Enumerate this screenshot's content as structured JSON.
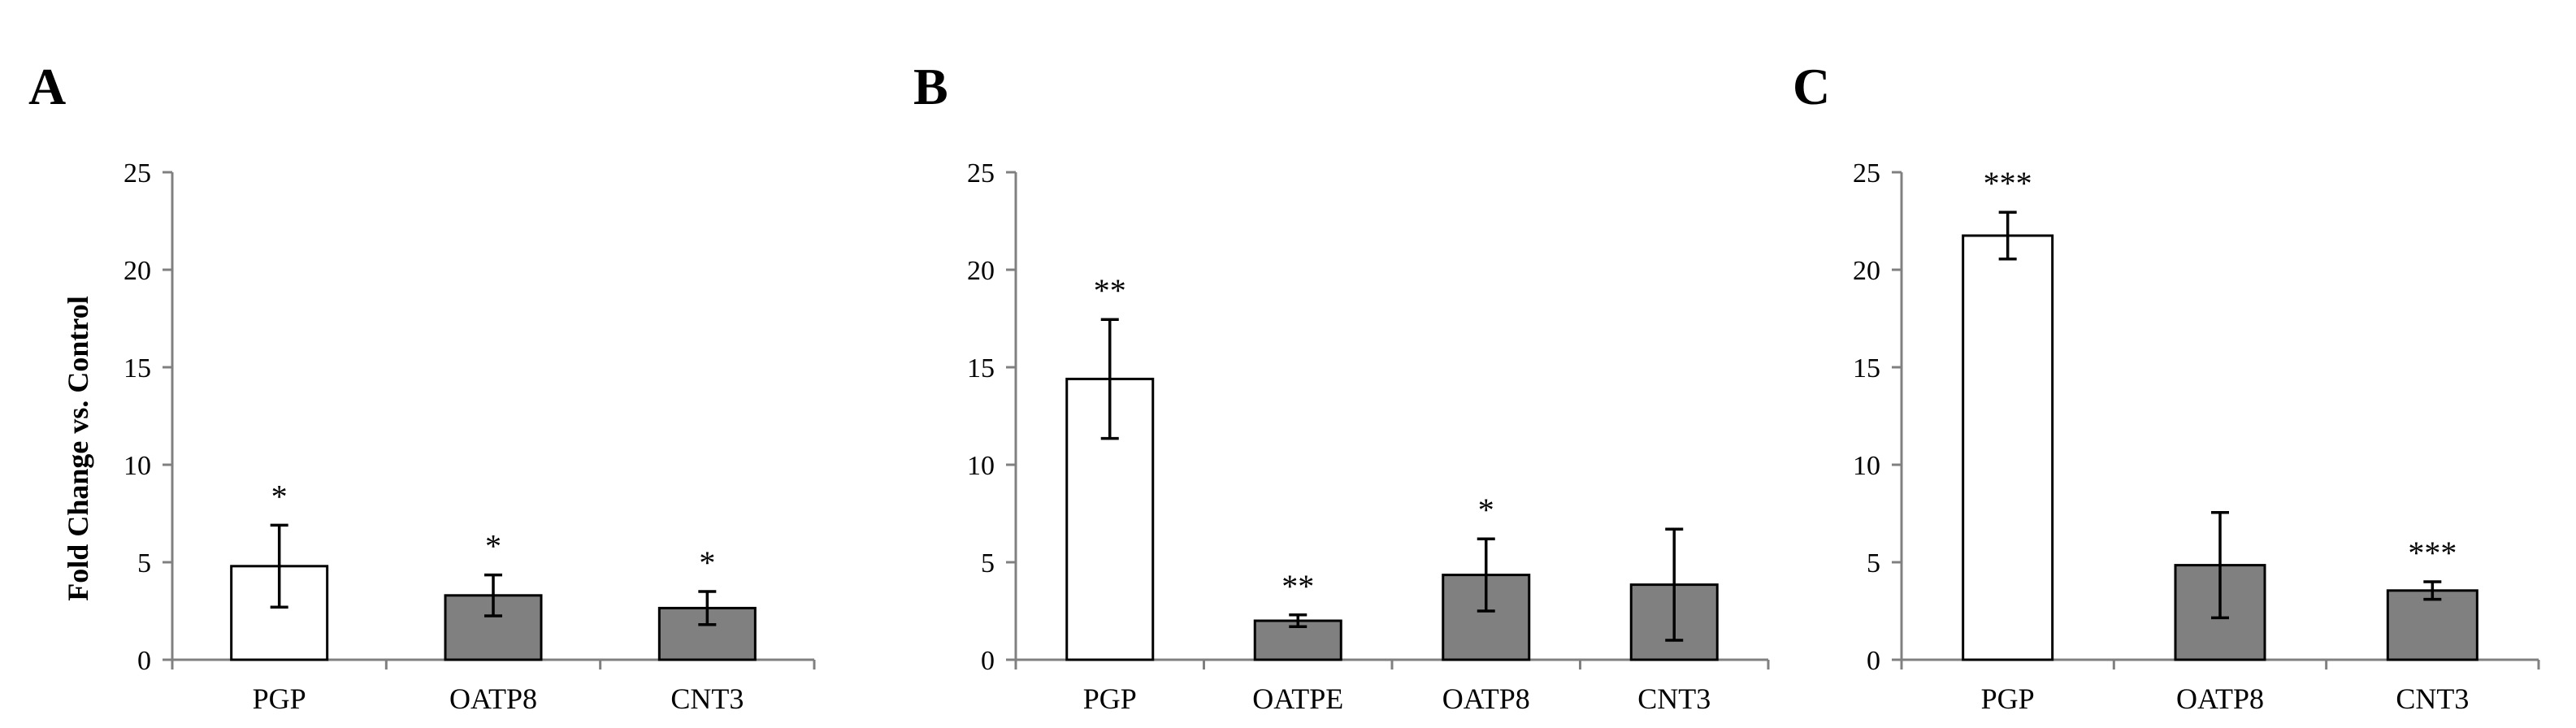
{
  "chart_data": [
    {
      "type": "bar",
      "panel": "A",
      "ylabel": "Fold Change vs. Control",
      "ylim": [
        0,
        25
      ],
      "yticks": [
        0,
        5,
        10,
        15,
        20,
        25
      ],
      "categories": [
        "PGP",
        "OATP8",
        "CNT3"
      ],
      "values": [
        4.8,
        3.3,
        2.65
      ],
      "errors": [
        2.1,
        1.05,
        0.85
      ],
      "significance": [
        "*",
        "*",
        "*"
      ],
      "bar_colors": [
        "#ffffff",
        "#808080",
        "#808080"
      ]
    },
    {
      "type": "bar",
      "panel": "B",
      "ylabel": "",
      "ylim": [
        0,
        25
      ],
      "yticks": [
        0,
        5,
        10,
        15,
        20,
        25
      ],
      "categories": [
        "PGP",
        "OATPE",
        "OATP8",
        "CNT3"
      ],
      "values": [
        14.4,
        2.0,
        4.35,
        3.85
      ],
      "errors": [
        3.05,
        0.3,
        1.85,
        2.85
      ],
      "significance": [
        "**",
        "**",
        "*",
        ""
      ],
      "bar_colors": [
        "#ffffff",
        "#808080",
        "#808080",
        "#808080"
      ]
    },
    {
      "type": "bar",
      "panel": "C",
      "ylabel": "",
      "ylim": [
        0,
        25
      ],
      "yticks": [
        0,
        5,
        10,
        15,
        20,
        25
      ],
      "categories": [
        "PGP",
        "OATP8",
        "CNT3"
      ],
      "values": [
        21.75,
        4.85,
        3.55
      ],
      "errors": [
        1.2,
        2.7,
        0.45
      ],
      "significance": [
        "***",
        "",
        "***"
      ],
      "bar_colors": [
        "#ffffff",
        "#808080",
        "#808080"
      ]
    }
  ]
}
